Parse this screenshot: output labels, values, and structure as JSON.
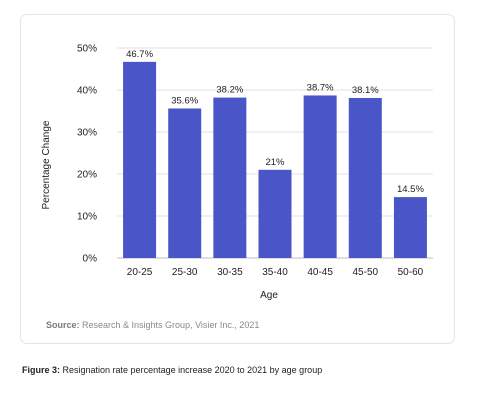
{
  "chart_data": {
    "type": "bar",
    "categories": [
      "20-25",
      "25-30",
      "30-35",
      "35-40",
      "40-45",
      "45-50",
      "50-60"
    ],
    "values": [
      46.7,
      35.6,
      38.2,
      21,
      38.7,
      38.1,
      14.5
    ],
    "data_labels": [
      "46.7%",
      "35.6%",
      "38.2%",
      "21%",
      "38.7%",
      "38.1%",
      "14.5%"
    ],
    "ylim": [
      0,
      50
    ],
    "yticks": [
      0,
      10,
      20,
      30,
      40,
      50
    ],
    "ytick_labels": [
      "0%",
      "10%",
      "20%",
      "30%",
      "40%",
      "50%"
    ],
    "xlabel": "Age",
    "ylabel": "Percentage Change",
    "grid": true,
    "bar_color": "#4a55c8"
  },
  "source": {
    "label": "Source:",
    "text": " Research & Insights Group, Visier Inc., 2021"
  },
  "caption": {
    "label": "Figure 3:",
    "text": " Resignation rate percentage increase  2020 to 2021 by age group"
  }
}
